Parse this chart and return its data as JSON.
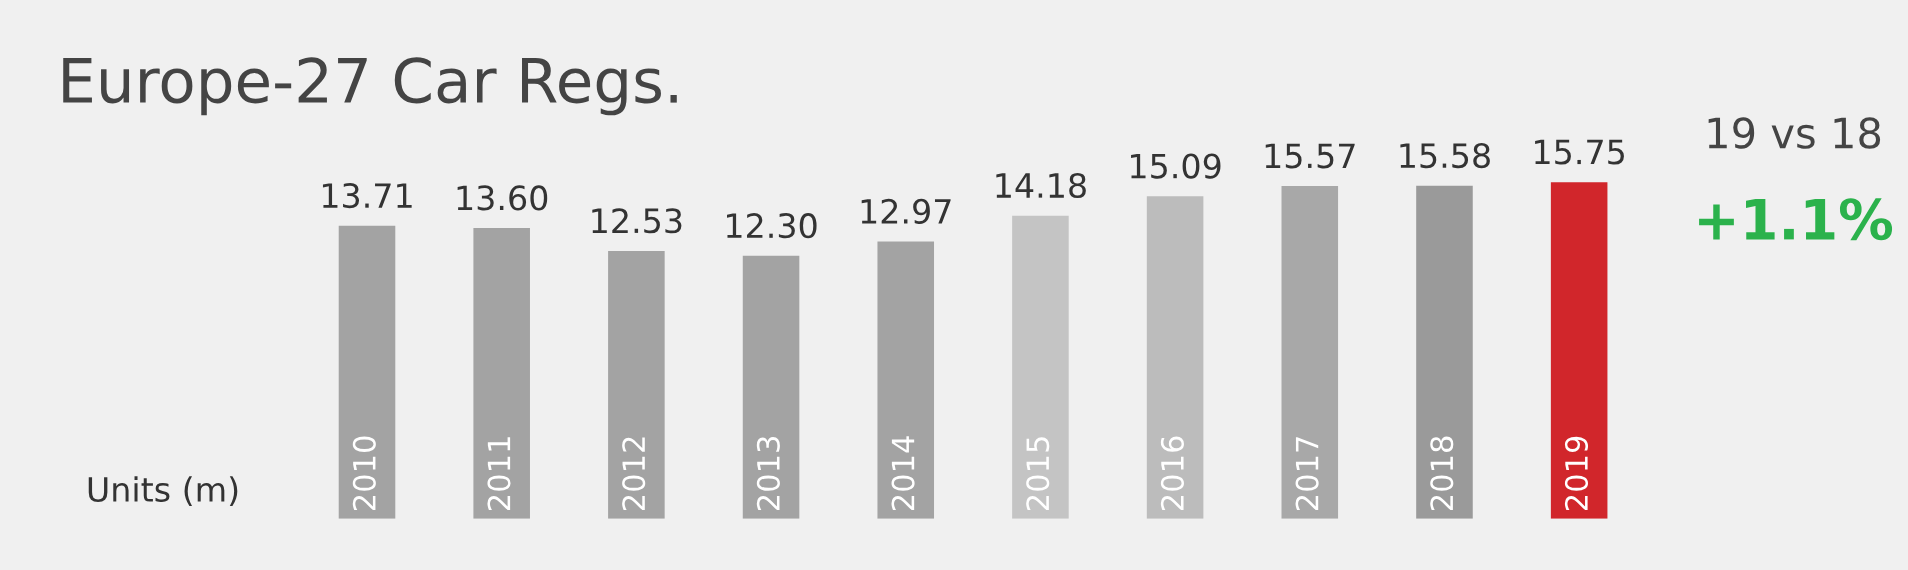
{
  "chart_data": {
    "type": "bar",
    "title": "Europe-27 Car Regs.",
    "categories": [
      "2010",
      "2011",
      "2012",
      "2013",
      "2014",
      "2015",
      "2016",
      "2017",
      "2018",
      "2019"
    ],
    "values": [
      13.71,
      13.6,
      12.53,
      12.3,
      12.97,
      14.18,
      15.09,
      15.57,
      15.58,
      15.75
    ],
    "value_labels": [
      "13.71",
      "13.60",
      "12.53",
      "12.30",
      "12.97",
      "14.18",
      "15.09",
      "15.57",
      "15.58",
      "15.75"
    ],
    "colors": [
      "#a3a3a3",
      "#a3a3a3",
      "#a3a3a3",
      "#a3a3a3",
      "#a3a3a3",
      "#c4c4c4",
      "#bcbcbc",
      "#a8a8a8",
      "#9a9a9a",
      "#d1262b"
    ],
    "ylabel": "Units (m)",
    "annotations": [
      "19 vs 18",
      "+1.1%"
    ]
  }
}
